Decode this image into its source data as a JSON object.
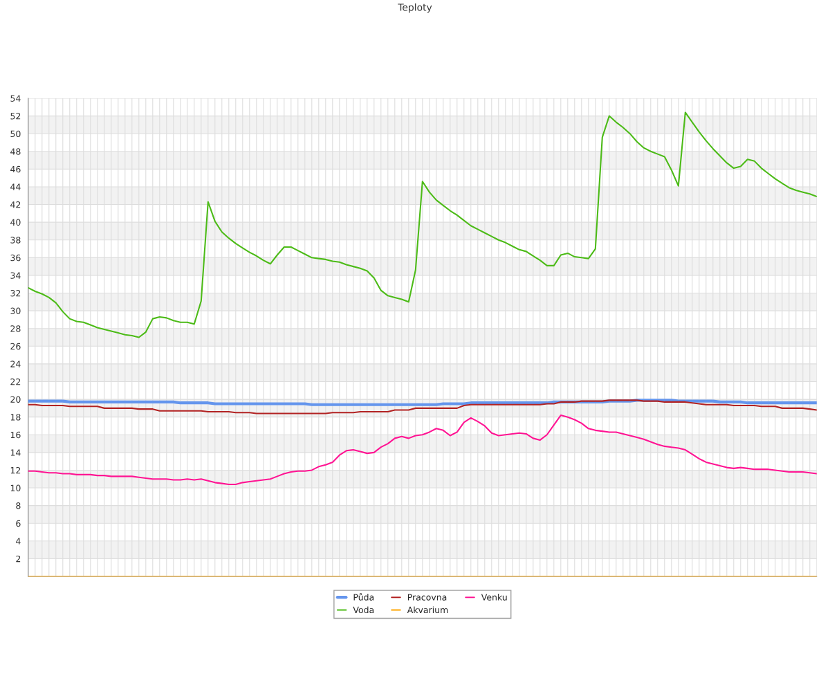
{
  "chart_data": {
    "type": "line",
    "title": "Teploty",
    "categories": [
      null,
      null,
      null,
      null,
      null,
      null,
      null,
      null,
      null,
      null,
      null,
      null,
      null,
      null,
      null,
      null,
      null,
      null,
      null,
      null,
      null,
      null,
      null,
      null,
      null,
      null,
      null,
      null,
      null,
      null,
      null,
      null,
      null,
      null,
      null,
      null,
      null,
      null,
      null,
      null,
      null,
      null,
      null,
      null,
      null,
      null,
      null,
      null,
      null,
      null,
      null,
      null,
      null,
      null,
      null,
      null,
      null,
      null,
      null,
      null,
      null,
      null,
      null,
      null,
      null,
      null,
      null,
      null,
      null,
      null,
      null,
      null,
      null,
      null,
      null,
      null,
      null,
      null,
      null,
      null,
      null,
      null,
      null,
      null,
      null,
      null,
      null,
      null,
      null,
      null,
      null,
      null,
      null,
      null,
      null,
      null,
      null,
      null,
      null,
      null,
      null,
      null,
      null,
      null,
      null,
      null,
      null,
      null,
      null,
      null,
      null,
      null,
      null,
      null,
      null
    ],
    "series": [
      {
        "name": "Půda",
        "color": "#6495ed",
        "values": [
          19.8,
          19.8,
          19.8,
          19.8,
          19.8,
          19.8,
          19.7,
          19.7,
          19.7,
          19.7,
          19.7,
          19.7,
          19.7,
          19.7,
          19.7,
          19.7,
          19.7,
          19.7,
          19.7,
          19.7,
          19.7,
          19.7,
          19.6,
          19.6,
          19.6,
          19.6,
          19.6,
          19.5,
          19.5,
          19.5,
          19.5,
          19.5,
          19.5,
          19.5,
          19.5,
          19.5,
          19.5,
          19.5,
          19.5,
          19.5,
          19.5,
          19.4,
          19.4,
          19.4,
          19.4,
          19.4,
          19.4,
          19.4,
          19.4,
          19.4,
          19.4,
          19.4,
          19.4,
          19.4,
          19.4,
          19.4,
          19.4,
          19.4,
          19.4,
          19.4,
          19.5,
          19.5,
          19.5,
          19.5,
          19.6,
          19.6,
          19.6,
          19.6,
          19.6,
          19.6,
          19.6,
          19.6,
          19.6,
          19.6,
          19.6,
          19.6,
          19.7,
          19.7,
          19.7,
          19.7,
          19.7,
          19.7,
          19.7,
          19.7,
          19.8,
          19.8,
          19.8,
          19.8,
          19.9,
          19.9,
          19.9,
          19.9,
          19.9,
          19.9,
          19.8,
          19.8,
          19.8,
          19.8,
          19.8,
          19.8,
          19.7,
          19.7,
          19.7,
          19.7,
          19.6,
          19.6,
          19.6,
          19.6,
          19.6,
          19.6,
          19.6,
          19.6,
          19.6,
          19.6,
          19.6
        ]
      },
      {
        "name": "Voda",
        "color": "#4cbb17",
        "values": [
          32.6,
          32.2,
          31.9,
          31.5,
          30.9,
          29.9,
          29.1,
          28.8,
          28.7,
          28.4,
          28.1,
          27.9,
          27.7,
          27.5,
          27.3,
          27.2,
          27.0,
          27.6,
          29.1,
          29.3,
          29.2,
          28.9,
          28.7,
          28.7,
          28.5,
          31.1,
          42.3,
          40.1,
          38.9,
          38.2,
          37.6,
          37.1,
          36.6,
          36.2,
          35.7,
          35.3,
          36.3,
          37.2,
          37.2,
          36.8,
          36.4,
          36.0,
          35.9,
          35.8,
          35.6,
          35.5,
          35.2,
          35.0,
          34.8,
          34.5,
          33.7,
          32.3,
          31.7,
          31.5,
          31.3,
          31.0,
          34.6,
          44.6,
          43.4,
          42.5,
          41.9,
          41.3,
          40.8,
          40.2,
          39.6,
          39.2,
          38.8,
          38.4,
          38.0,
          37.7,
          37.3,
          36.9,
          36.7,
          36.2,
          35.7,
          35.1,
          35.1,
          36.3,
          36.5,
          36.1,
          36.0,
          35.9,
          37.0,
          49.6,
          52.0,
          51.3,
          50.7,
          50.0,
          49.1,
          48.4,
          48.0,
          47.7,
          47.4,
          45.9,
          44.1,
          52.4,
          51.3,
          50.2,
          49.2,
          48.3,
          47.5,
          46.7,
          46.1,
          46.3,
          47.1,
          46.9,
          46.1,
          45.5,
          44.9,
          44.4,
          43.9,
          43.6,
          43.4,
          43.2,
          42.9
        ]
      },
      {
        "name": "Pracovna",
        "color": "#b22222",
        "values": [
          19.4,
          19.4,
          19.3,
          19.3,
          19.3,
          19.3,
          19.2,
          19.2,
          19.2,
          19.2,
          19.2,
          19.0,
          19.0,
          19.0,
          19.0,
          19.0,
          18.9,
          18.9,
          18.9,
          18.7,
          18.7,
          18.7,
          18.7,
          18.7,
          18.7,
          18.7,
          18.6,
          18.6,
          18.6,
          18.6,
          18.5,
          18.5,
          18.5,
          18.4,
          18.4,
          18.4,
          18.4,
          18.4,
          18.4,
          18.4,
          18.4,
          18.4,
          18.4,
          18.4,
          18.5,
          18.5,
          18.5,
          18.5,
          18.6,
          18.6,
          18.6,
          18.6,
          18.6,
          18.8,
          18.8,
          18.8,
          19.0,
          19.0,
          19.0,
          19.0,
          19.0,
          19.0,
          19.0,
          19.3,
          19.4,
          19.4,
          19.4,
          19.4,
          19.4,
          19.4,
          19.4,
          19.4,
          19.4,
          19.4,
          19.4,
          19.5,
          19.5,
          19.7,
          19.7,
          19.7,
          19.8,
          19.8,
          19.8,
          19.8,
          19.9,
          19.9,
          19.9,
          19.9,
          19.9,
          19.8,
          19.8,
          19.8,
          19.7,
          19.7,
          19.7,
          19.7,
          19.6,
          19.5,
          19.4,
          19.4,
          19.4,
          19.4,
          19.3,
          19.3,
          19.3,
          19.3,
          19.2,
          19.2,
          19.2,
          19.0,
          19.0,
          19.0,
          19.0,
          18.9,
          18.8
        ]
      },
      {
        "name": "Akvarium",
        "color": "#ffa500",
        "values": [
          0,
          0,
          0,
          0,
          0,
          0,
          0,
          0,
          0,
          0,
          0,
          0,
          0,
          0,
          0,
          0,
          0,
          0,
          0,
          0,
          0,
          0,
          0,
          0,
          0,
          0,
          0,
          0,
          0,
          0,
          0,
          0,
          0,
          0,
          0,
          0,
          0,
          0,
          0,
          0,
          0,
          0,
          0,
          0,
          0,
          0,
          0,
          0,
          0,
          0,
          0,
          0,
          0,
          0,
          0,
          0,
          0,
          0,
          0,
          0,
          0,
          0,
          0,
          0,
          0,
          0,
          0,
          0,
          0,
          0,
          0,
          0,
          0,
          0,
          0,
          0,
          0,
          0,
          0,
          0,
          0,
          0,
          0,
          0,
          0,
          0,
          0,
          0,
          0,
          0,
          0,
          0,
          0,
          0,
          0,
          0,
          0,
          0,
          0,
          0,
          0,
          0,
          0,
          0,
          0,
          0,
          0,
          0,
          0,
          0,
          0,
          0,
          0,
          0,
          0
        ]
      },
      {
        "name": "Venku",
        "color": "#ff1493",
        "values": [
          11.9,
          11.9,
          11.8,
          11.7,
          11.7,
          11.6,
          11.6,
          11.5,
          11.5,
          11.5,
          11.4,
          11.4,
          11.3,
          11.3,
          11.3,
          11.3,
          11.2,
          11.1,
          11.0,
          11.0,
          11.0,
          10.9,
          10.9,
          11.0,
          10.9,
          11.0,
          10.8,
          10.6,
          10.5,
          10.4,
          10.4,
          10.6,
          10.7,
          10.8,
          10.9,
          11.0,
          11.3,
          11.6,
          11.8,
          11.9,
          11.9,
          12.0,
          12.4,
          12.6,
          12.9,
          13.7,
          14.2,
          14.3,
          14.1,
          13.9,
          14.0,
          14.6,
          15.0,
          15.6,
          15.8,
          15.6,
          15.9,
          16.0,
          16.3,
          16.7,
          16.5,
          15.9,
          16.3,
          17.4,
          17.9,
          17.5,
          17.0,
          16.2,
          15.9,
          16.0,
          16.1,
          16.2,
          16.1,
          15.6,
          15.4,
          16.0,
          17.1,
          18.2,
          18.0,
          17.7,
          17.3,
          16.7,
          16.5,
          16.4,
          16.3,
          16.3,
          16.1,
          15.9,
          15.7,
          15.5,
          15.2,
          14.9,
          14.7,
          14.6,
          14.5,
          14.3,
          13.8,
          13.3,
          12.9,
          12.7,
          12.5,
          12.3,
          12.2,
          12.3,
          12.2,
          12.1,
          12.1,
          12.1,
          12.0,
          11.9,
          11.8,
          11.8,
          11.8,
          11.7,
          11.6
        ]
      }
    ],
    "ylim": [
      0,
      54
    ],
    "yticks": [
      {
        "value": 0,
        "label": null
      },
      2,
      4,
      6,
      8,
      10,
      12,
      14,
      16,
      18,
      20,
      22,
      24,
      26,
      28,
      30,
      32,
      34,
      36,
      38,
      40,
      42,
      44,
      46,
      48,
      50,
      52,
      54
    ],
    "grid": true,
    "legend": "bottom",
    "marker": "none",
    "line_style": "solid"
  }
}
